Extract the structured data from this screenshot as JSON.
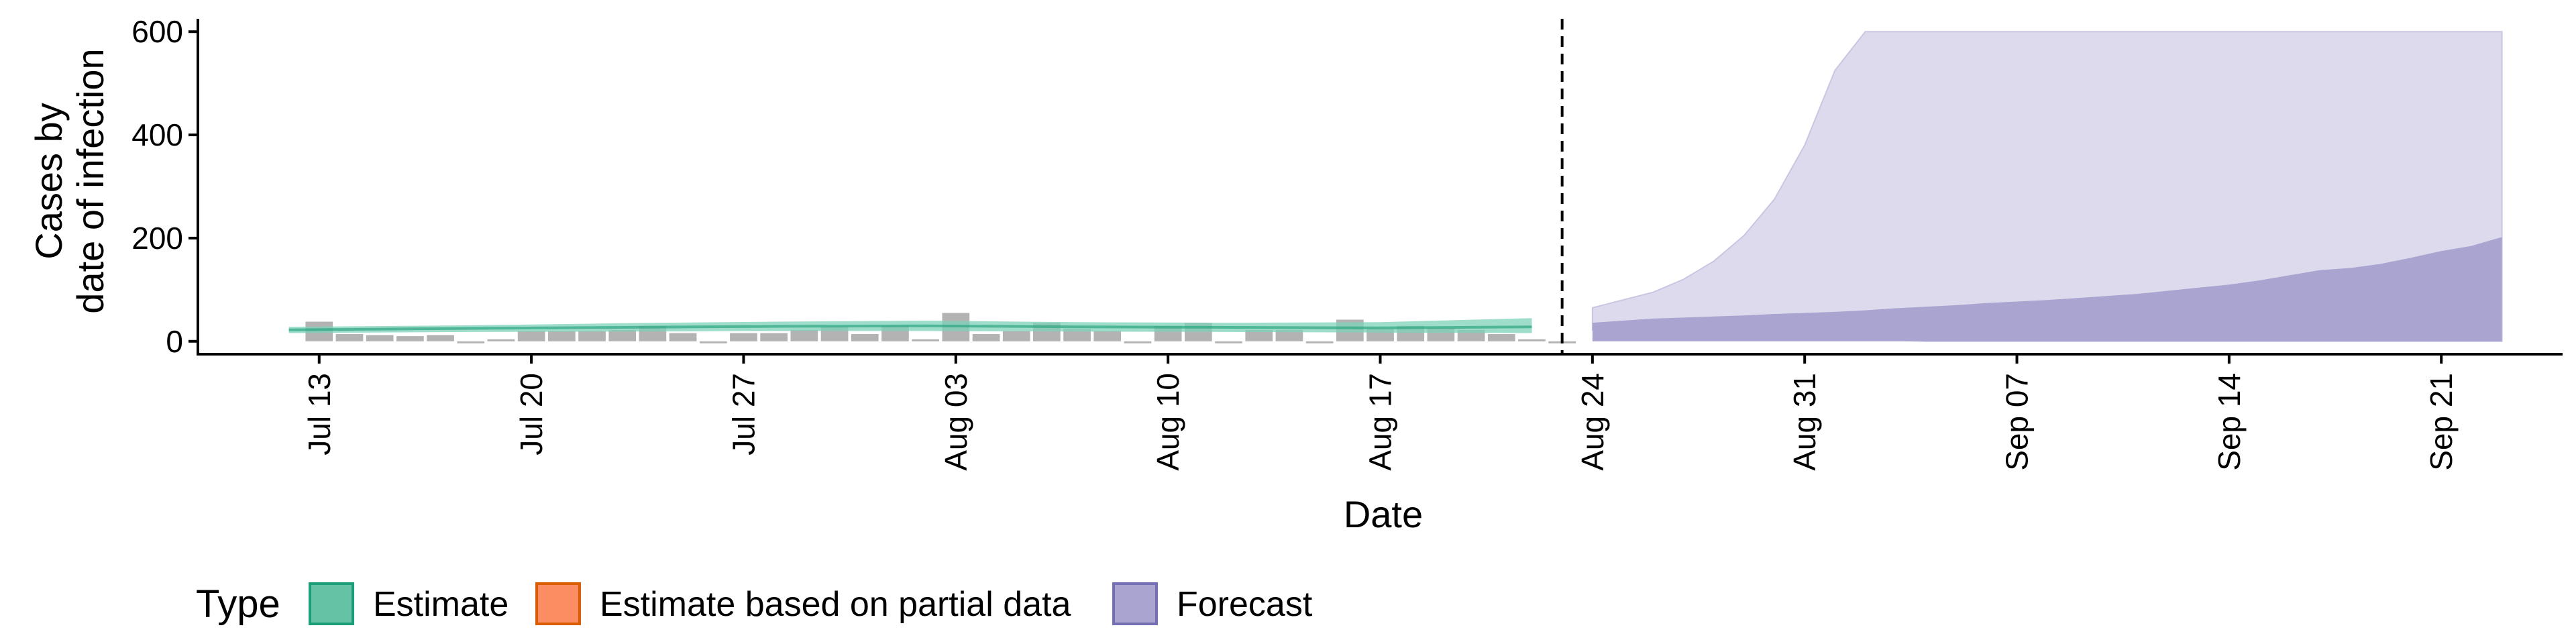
{
  "chart_data": {
    "type": "area",
    "xlabel": "Date",
    "ylabel_lines": [
      "Cases by",
      "date of infection"
    ],
    "y_ticks": [
      0,
      200,
      400,
      600
    ],
    "ylim": [
      -25,
      625
    ],
    "x_ticks": [
      {
        "day": 0,
        "label": "Jul 13"
      },
      {
        "day": 7,
        "label": "Jul 20"
      },
      {
        "day": 14,
        "label": "Jul 27"
      },
      {
        "day": 21,
        "label": "Aug 03"
      },
      {
        "day": 28,
        "label": "Aug 10"
      },
      {
        "day": 35,
        "label": "Aug 17"
      },
      {
        "day": 42,
        "label": "Aug 24"
      },
      {
        "day": 49,
        "label": "Aug 31"
      },
      {
        "day": 56,
        "label": "Sep 07"
      },
      {
        "day": 63,
        "label": "Sep 14"
      },
      {
        "day": 70,
        "label": "Sep 21"
      }
    ],
    "xlim_days": [
      -4,
      74
    ],
    "forecast_start_day": 41,
    "observed_cases": {
      "days": [
        0,
        1,
        2,
        3,
        4,
        5,
        6,
        7,
        8,
        9,
        10,
        11,
        12,
        13,
        14,
        15,
        16,
        17,
        18,
        19,
        20,
        21,
        22,
        23,
        24,
        25,
        26,
        27,
        28,
        29,
        30,
        31,
        32,
        33,
        34,
        35,
        36,
        37,
        38,
        39,
        40,
        41
      ],
      "values": [
        38,
        14,
        12,
        10,
        12,
        0,
        4,
        20,
        20,
        20,
        22,
        30,
        16,
        0,
        16,
        16,
        22,
        28,
        14,
        30,
        4,
        55,
        14,
        20,
        36,
        24,
        20,
        0,
        30,
        36,
        0,
        22,
        22,
        0,
        42,
        24,
        30,
        26,
        22,
        14,
        4,
        0
      ]
    },
    "estimate": {
      "days": [
        -1,
        5,
        10,
        15,
        20,
        25,
        30,
        35,
        40
      ],
      "median": [
        22,
        25,
        27,
        29,
        30,
        28,
        27,
        26,
        28
      ],
      "lower": [
        16,
        18,
        19,
        20,
        20,
        19,
        18,
        17,
        16
      ],
      "upper": [
        28,
        31,
        35,
        38,
        40,
        37,
        36,
        37,
        45
      ]
    },
    "forecast": {
      "days": [
        42,
        43,
        44,
        45,
        46,
        47,
        48,
        49,
        50,
        51,
        52,
        53,
        54,
        55,
        56,
        57,
        58,
        59,
        60,
        61,
        62,
        63,
        64,
        65,
        66,
        67,
        68,
        69,
        70,
        71,
        72
      ],
      "outer_lower": [
        22,
        20,
        18,
        16,
        14,
        12,
        10,
        8,
        6,
        4,
        2,
        0,
        0,
        0,
        0,
        0,
        0,
        0,
        0,
        0,
        0,
        0,
        0,
        0,
        0,
        0,
        0,
        0,
        0,
        0,
        0
      ],
      "outer_upper": [
        65,
        80,
        95,
        120,
        155,
        205,
        275,
        380,
        525,
        600,
        600,
        600,
        600,
        600,
        600,
        600,
        600,
        600,
        600,
        600,
        600,
        600,
        600,
        600,
        600,
        600,
        600,
        600,
        600,
        600,
        600
      ],
      "inner_lower": [
        0,
        0,
        0,
        0,
        0,
        0,
        0,
        0,
        0,
        0,
        0,
        0,
        0,
        0,
        0,
        0,
        0,
        0,
        0,
        0,
        0,
        0,
        0,
        0,
        0,
        0,
        0,
        0,
        0,
        0,
        0
      ],
      "inner_upper": [
        36,
        40,
        44,
        46,
        48,
        50,
        53,
        55,
        57,
        60,
        64,
        67,
        70,
        74,
        77,
        80,
        84,
        88,
        92,
        98,
        104,
        110,
        118,
        128,
        138,
        142,
        150,
        162,
        175,
        185,
        202
      ]
    },
    "legend": {
      "title": "Type",
      "position": "bottom-left",
      "items": [
        {
          "label": "Estimate",
          "fill": "#66c2a5",
          "stroke": "#1b9e77"
        },
        {
          "label": "Estimate based on partial data",
          "fill": "#fc8d62",
          "stroke": "#d95f02"
        },
        {
          "label": "Forecast",
          "fill": "#a9a4d0",
          "stroke": "#7570b3"
        }
      ]
    },
    "colors": {
      "observed_bar": "#b3b3b3",
      "estimate_band": "#7fd1b9",
      "estimate_line": "#1b9e77",
      "forecast_outer": "#dcdaec",
      "forecast_inner": "#a9a4d0",
      "forecast_line": "#7570b3"
    }
  }
}
